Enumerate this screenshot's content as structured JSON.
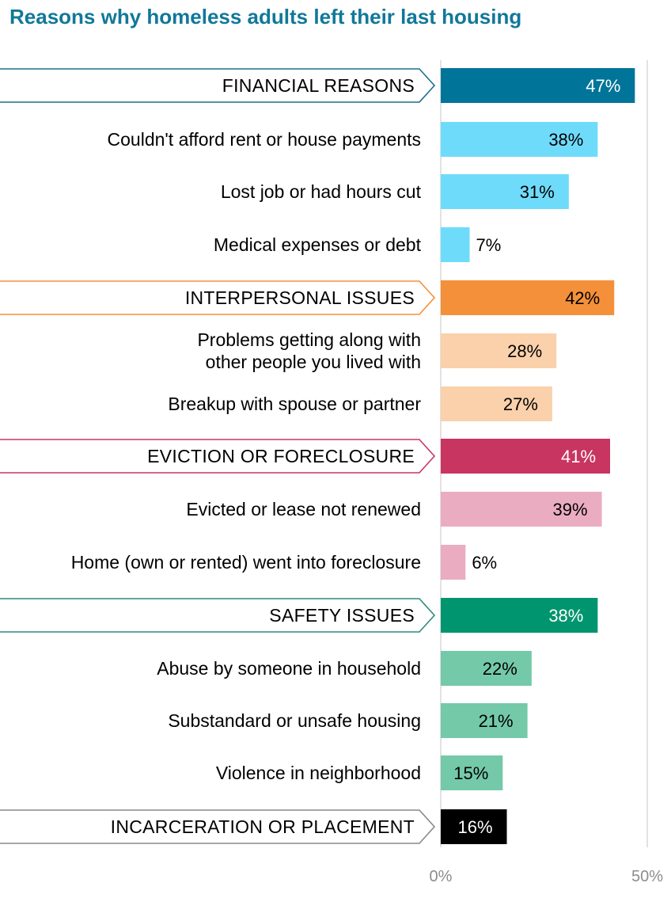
{
  "chart_data": {
    "type": "bar",
    "orientation": "horizontal",
    "title": "Reasons why homeless adults left their last housing",
    "xlim": [
      0,
      50
    ],
    "x_ticks": [
      "0%",
      "50%"
    ],
    "grid": "vertical lines at 0% and 50%",
    "legend": "none",
    "categories": [
      {
        "label": "FINANCIAL REASONS",
        "value": 47,
        "value_label": "47%",
        "is_group": true,
        "color": "#017499",
        "outline": "#1c6f8c",
        "value_color": "#ffffff"
      },
      {
        "label": "Couldn't afford rent or house payments",
        "value": 38,
        "value_label": "38%",
        "is_group": false,
        "color": "#6fdbfb",
        "value_color": "#000000"
      },
      {
        "label": "Lost job or had hours cut",
        "value": 31,
        "value_label": "31%",
        "is_group": false,
        "color": "#6fdbfb",
        "value_color": "#000000"
      },
      {
        "label": "Medical expenses or debt",
        "value": 7,
        "value_label": "7%",
        "is_group": false,
        "color": "#6fdbfb",
        "value_color": "#000000"
      },
      {
        "label": "INTERPERSONAL ISSUES",
        "value": 42,
        "value_label": "42%",
        "is_group": true,
        "color": "#f5903a",
        "outline": "#f5903a",
        "value_color": "#000000"
      },
      {
        "label": "Problems getting along with other people you lived with",
        "lines": [
          "Problems getting along with",
          "other people you lived with"
        ],
        "value": 28,
        "value_label": "28%",
        "is_group": false,
        "color": "#fad1ab",
        "value_color": "#000000"
      },
      {
        "label": "Breakup with spouse or partner",
        "value": 27,
        "value_label": "27%",
        "is_group": false,
        "color": "#fad1ab",
        "value_color": "#000000"
      },
      {
        "label": "EVICTION OR FORECLOSURE",
        "value": 41,
        "value_label": "41%",
        "is_group": true,
        "color": "#c83561",
        "outline": "#c83561",
        "value_color": "#ffffff"
      },
      {
        "label": "Evicted or lease not renewed",
        "value": 39,
        "value_label": "39%",
        "is_group": false,
        "color": "#eaacc0",
        "value_color": "#000000"
      },
      {
        "label": "Home (own or rented) went into foreclosure",
        "value": 6,
        "value_label": "6%",
        "is_group": false,
        "color": "#eaacc0",
        "value_color": "#000000"
      },
      {
        "label": "SAFETY ISSUES",
        "value": 38,
        "value_label": "38%",
        "is_group": true,
        "color": "#00956e",
        "outline": "#2e8b7a",
        "value_color": "#ffffff"
      },
      {
        "label": "Abuse by someone in household",
        "value": 22,
        "value_label": "22%",
        "is_group": false,
        "color": "#74c9a8",
        "value_color": "#000000"
      },
      {
        "label": "Substandard or unsafe housing",
        "value": 21,
        "value_label": "21%",
        "is_group": false,
        "color": "#74c9a8",
        "value_color": "#000000"
      },
      {
        "label": "Violence in neighborhood",
        "value": 15,
        "value_label": "15%",
        "is_group": false,
        "color": "#74c9a8",
        "value_color": "#000000"
      },
      {
        "label": "INCARCERATION OR PLACEMENT",
        "value": 16,
        "value_label": "16%",
        "is_group": true,
        "color": "#000000",
        "outline": "#888888",
        "value_color": "#ffffff"
      }
    ]
  }
}
